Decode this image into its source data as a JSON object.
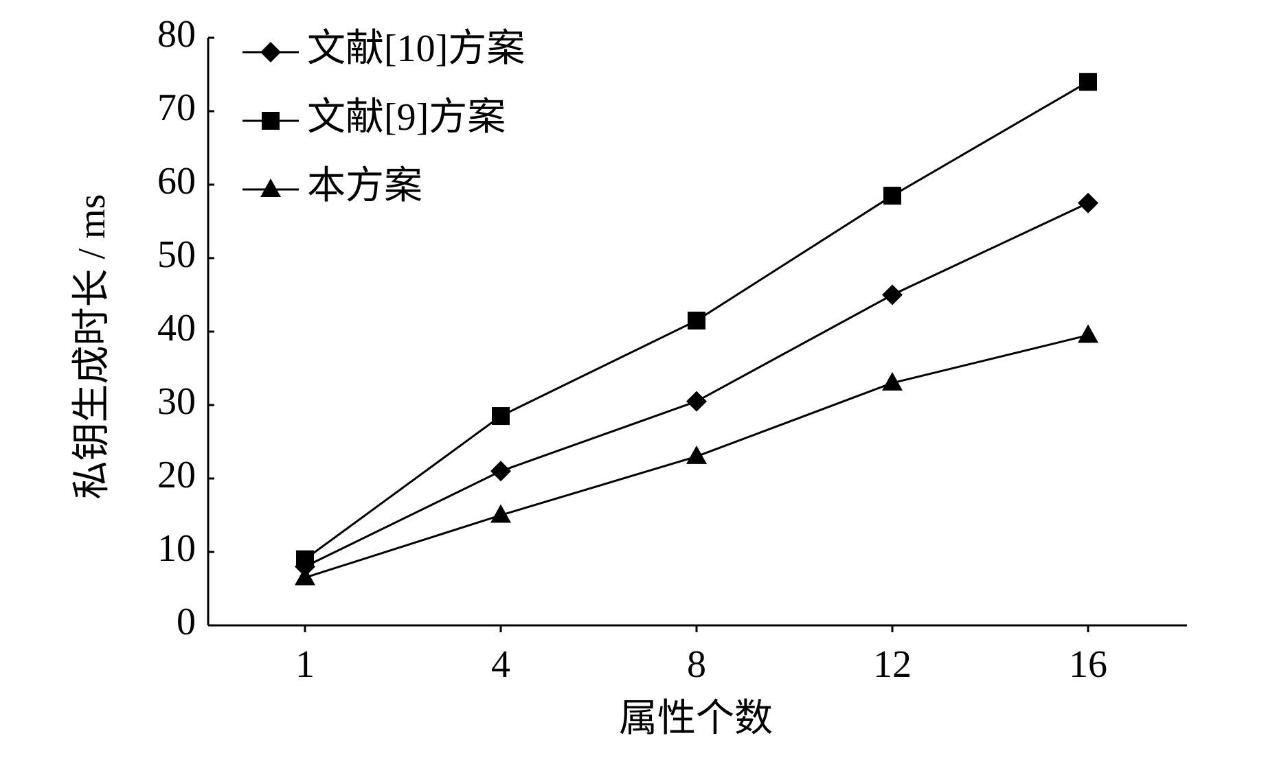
{
  "chart_data": {
    "type": "line",
    "x_label": "属性个数",
    "y_label": "私钥生成时长 / ms",
    "categories": [
      "1",
      "4",
      "8",
      "12",
      "16"
    ],
    "series": [
      {
        "name": "文献[10]方案",
        "color": "#000000",
        "marker": "diamond",
        "values": [
          8,
          21,
          30.5,
          45,
          57.5
        ]
      },
      {
        "name": "文献[9]方案",
        "color": "#000000",
        "marker": "square",
        "values": [
          9,
          28.5,
          41.5,
          58.5,
          74
        ]
      },
      {
        "name": "本方案",
        "color": "#000000",
        "marker": "triangle",
        "values": [
          6.5,
          15,
          23,
          33,
          39.5
        ]
      }
    ],
    "ylim": [
      0,
      80
    ],
    "yticks": [
      0,
      10,
      20,
      30,
      40,
      50,
      60,
      70,
      80
    ],
    "legend": "top-left",
    "grid": false
  }
}
